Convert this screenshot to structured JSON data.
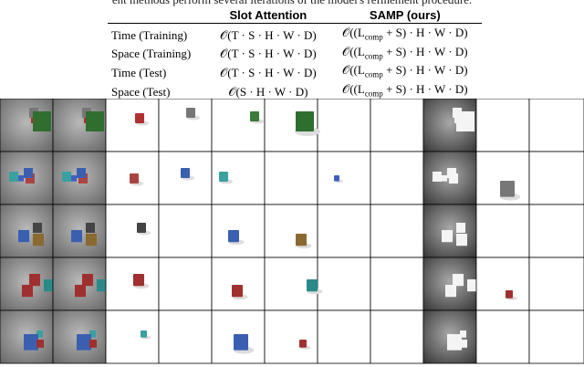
{
  "caption_tail": "ent methods perform several iterations of the model's refinement procedure.",
  "table": {
    "header": [
      "Slot Attention",
      "SAMP (ours)"
    ],
    "rows": [
      {
        "label": "Time (Training)",
        "slot": "𝒪(T · S · H · W · D)",
        "samp": {
          "before": "𝒪((L",
          "sub": "comp",
          "after": " + S) · H · W · D)"
        }
      },
      {
        "label": "Space (Training)",
        "slot": "𝒪(T · S · H · W · D)",
        "samp": {
          "before": "𝒪((L",
          "sub": "comp",
          "after": " + S) · H · W · D)"
        }
      },
      {
        "label": "Time (Test)",
        "slot": "𝒪(T · S · H · W · D)",
        "samp": {
          "before": "𝒪((L",
          "sub": "comp",
          "after": " + S) · H · W · D)"
        }
      },
      {
        "label": "Space (Test)",
        "slot": "𝒪(S · H · W · D)",
        "samp": {
          "before": "𝒪((L",
          "sub": "comp",
          "after": " + S) · H · W · D)"
        }
      }
    ]
  }
}
